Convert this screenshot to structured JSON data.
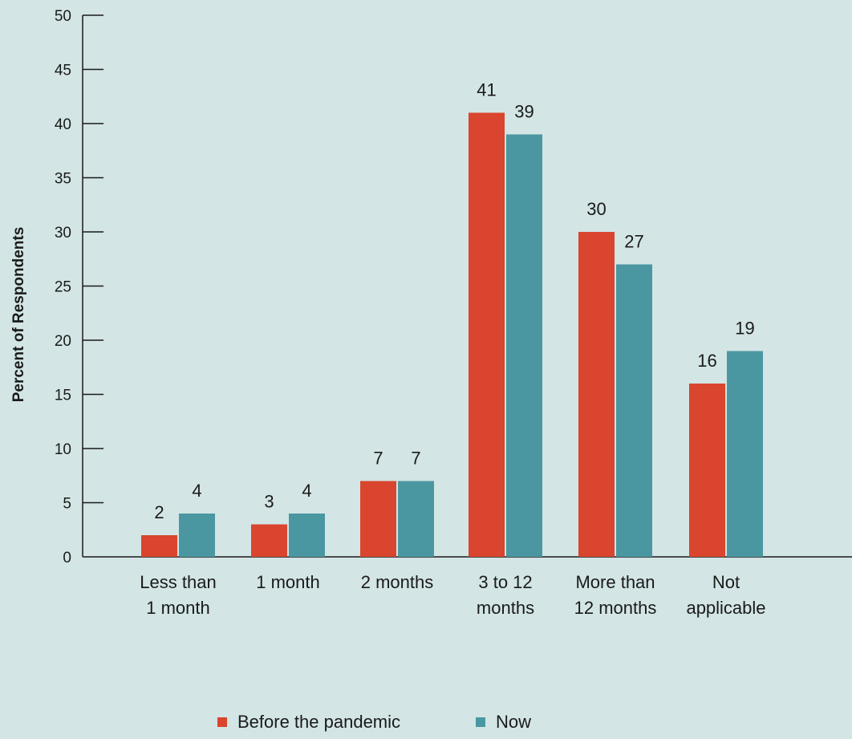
{
  "chart_data": {
    "type": "bar",
    "ylabel": "Percent of Respondents",
    "xlabel": "",
    "ylim": [
      0,
      50
    ],
    "yticks": [
      0,
      5,
      10,
      15,
      20,
      25,
      30,
      35,
      40,
      45,
      50
    ],
    "grid": false,
    "legend_position": "bottom-center",
    "categories": [
      [
        "Less than",
        "1 month"
      ],
      [
        "1 month"
      ],
      [
        "2 months"
      ],
      [
        "3 to 12",
        "months"
      ],
      [
        "More than",
        "12 months"
      ],
      [
        "Not",
        "applicable"
      ]
    ],
    "series": [
      {
        "name": "Before the pandemic",
        "color": "#d9452e",
        "values": [
          2,
          3,
          7,
          41,
          30,
          16
        ]
      },
      {
        "name": "Now",
        "color": "#4a97a1",
        "values": [
          4,
          4,
          7,
          39,
          27,
          19
        ]
      }
    ]
  }
}
